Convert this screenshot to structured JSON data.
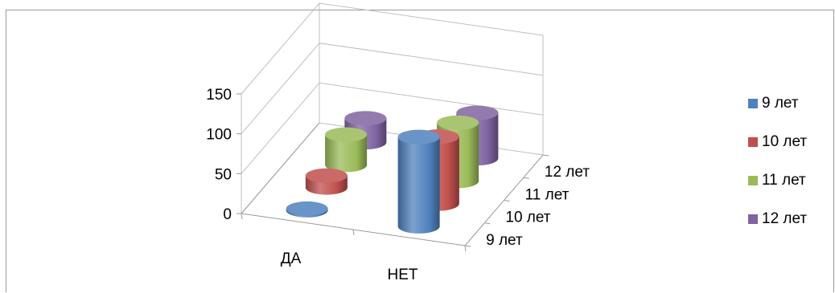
{
  "chart_data": {
    "type": "bar",
    "subtype": "3d-cylinder",
    "title": "",
    "categories": [
      "ДА",
      "НЕТ"
    ],
    "depth_categories": [
      "9 лет",
      "10 лет",
      "11 лет",
      "12 лет"
    ],
    "series": [
      {
        "name": "9 лет",
        "color": "#4f81bd",
        "values": [
          2,
          112
        ]
      },
      {
        "name": "10 лет",
        "color": "#c0504d",
        "values": [
          15,
          84
        ]
      },
      {
        "name": "11 лет",
        "color": "#9bbb59",
        "values": [
          38,
          73
        ]
      },
      {
        "name": "12 лет",
        "color": "#8064a2",
        "values": [
          30,
          57
        ]
      }
    ],
    "y_ticks": [
      "0",
      "50",
      "100",
      "150"
    ],
    "ylim": [
      0,
      150
    ],
    "legend_position": "right",
    "grid": true
  }
}
